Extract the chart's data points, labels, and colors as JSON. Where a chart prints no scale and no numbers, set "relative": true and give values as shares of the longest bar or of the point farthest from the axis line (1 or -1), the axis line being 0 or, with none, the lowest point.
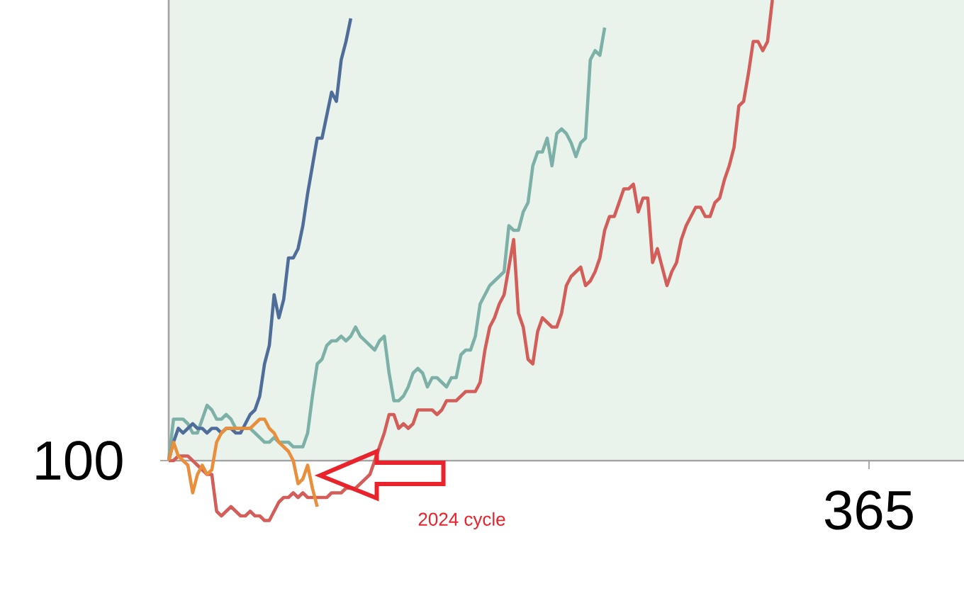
{
  "chart_data": {
    "type": "line",
    "relative": true,
    "marker": "none",
    "line_style": "solid",
    "categories": [
      null,
      null,
      null,
      null,
      null,
      null,
      null,
      null,
      null,
      null,
      null,
      null,
      null,
      null,
      null,
      null,
      null,
      null,
      null,
      null,
      null,
      null,
      null,
      null,
      null,
      null,
      null,
      null,
      null,
      null,
      null,
      null,
      null,
      null,
      null,
      null,
      null,
      null,
      null,
      null,
      null,
      null,
      null,
      null,
      null,
      null,
      null,
      null,
      null,
      null,
      null,
      null,
      null,
      null,
      null,
      null,
      null,
      null,
      null,
      null,
      null,
      null,
      null,
      null,
      null,
      null,
      null,
      null,
      null,
      null,
      null,
      null,
      null,
      null,
      null,
      null,
      null,
      null,
      null,
      null,
      null,
      null,
      null,
      null,
      null,
      null,
      null,
      null,
      null,
      null,
      null,
      null,
      null,
      null,
      null,
      null,
      null,
      null,
      null,
      null,
      null,
      null,
      null,
      null,
      null,
      null,
      null,
      null,
      null,
      null,
      null,
      null,
      null,
      null,
      null,
      null,
      null,
      null,
      null,
      null,
      null,
      null,
      null,
      null,
      null,
      null,
      null,
      null,
      null,
      null,
      null,
      null,
      null,
      null,
      null,
      null,
      null,
      null,
      null,
      null,
      null,
      null,
      null,
      null,
      null,
      null,
      null,
      null,
      null,
      null,
      null,
      null,
      null,
      null,
      null,
      null,
      null,
      null,
      null,
      null,
      null,
      null,
      null,
      null,
      null,
      null,
      null
    ],
    "annotations": [
      "100",
      "365"
    ],
    "series": [
      {
        "color": "#7db1a7",
        "values": [
          0,
          0.09,
          0.09,
          0.09,
          0.08,
          0.06,
          0.06,
          0.09,
          0.12,
          0.11,
          0.09,
          0.09,
          0.1,
          0.09,
          0.07,
          0.07,
          0.07,
          0.07,
          0.06,
          0.05,
          0.04,
          0.04,
          0.05,
          0.04,
          0.04,
          0.04,
          0.03,
          0.03,
          0.03,
          0.06,
          0.14,
          0.21,
          0.22,
          0.25,
          0.26,
          0.26,
          0.27,
          0.26,
          0.27,
          0.29,
          0.27,
          0.26,
          0.25,
          0.24,
          0.26,
          0.27,
          0.19,
          0.13,
          0.13,
          0.14,
          0.16,
          0.19,
          0.2,
          0.19,
          0.16,
          0.18,
          0.18,
          0.17,
          0.16,
          0.18,
          0.18,
          0.23,
          0.24,
          0.24,
          0.27,
          0.34,
          0.36,
          0.38,
          0.39,
          0.4,
          0.41,
          0.51,
          0.5,
          0.5,
          0.54,
          0.56,
          0.64,
          0.67,
          0.67,
          0.7,
          0.64,
          0.71,
          0.72,
          0.71,
          0.69,
          0.66,
          0.69,
          0.7,
          0.87,
          0.89,
          0.88,
          0.94,
          null,
          null,
          null,
          null,
          null,
          null,
          null,
          null,
          null,
          null,
          null,
          null,
          null,
          null,
          null,
          null,
          null,
          null,
          null,
          null,
          null,
          null,
          null,
          null,
          null,
          null,
          null,
          null,
          null,
          null,
          null,
          null,
          null,
          null,
          null,
          null,
          null,
          null,
          null,
          null,
          null,
          null,
          null,
          null,
          null,
          null,
          null,
          null,
          null,
          null,
          null,
          null,
          null,
          null,
          null,
          null,
          null,
          null,
          null,
          null,
          null,
          null,
          null,
          null,
          null,
          null,
          null,
          null,
          null,
          null,
          null,
          null,
          null,
          null,
          null
        ]
      },
      {
        "color": "#d35d58",
        "values": [
          0,
          0,
          0.01,
          0.01,
          0.01,
          0,
          -0.01,
          -0.02,
          -0.03,
          -0.03,
          -0.11,
          -0.12,
          -0.11,
          -0.1,
          -0.11,
          -0.12,
          -0.12,
          -0.11,
          -0.12,
          -0.12,
          -0.13,
          -0.13,
          -0.11,
          -0.09,
          -0.08,
          -0.08,
          -0.07,
          -0.08,
          -0.07,
          -0.08,
          -0.08,
          -0.08,
          -0.08,
          -0.08,
          -0.07,
          -0.07,
          -0.07,
          -0.06,
          -0.06,
          -0.06,
          -0.05,
          -0.04,
          -0.03,
          0,
          0.03,
          0.06,
          0.1,
          0.1,
          0.07,
          0.08,
          0.07,
          0.08,
          0.11,
          0.11,
          0.11,
          0.11,
          0.1,
          0.11,
          0.13,
          0.13,
          0.13,
          0.14,
          0.15,
          0.15,
          0.15,
          0.17,
          0.24,
          0.29,
          0.31,
          0.34,
          0.36,
          0.42,
          0.48,
          0.32,
          0.29,
          0.22,
          0.21,
          0.28,
          0.31,
          0.3,
          0.29,
          0.29,
          0.32,
          0.38,
          0.4,
          0.41,
          0.42,
          0.38,
          0.39,
          0.41,
          0.44,
          0.5,
          0.53,
          0.53,
          0.56,
          0.59,
          0.59,
          0.6,
          0.54,
          0.57,
          0.57,
          0.43,
          0.46,
          0.42,
          0.38,
          0.41,
          0.43,
          0.48,
          0.51,
          0.53,
          0.55,
          0.55,
          0.53,
          0.53,
          0.56,
          0.57,
          0.61,
          0.64,
          0.68,
          0.77,
          0.78,
          0.84,
          0.91,
          0.91,
          0.89,
          0.91,
          1.0,
          null,
          null,
          null,
          null,
          null,
          null,
          null,
          null,
          null,
          null,
          null,
          null,
          null,
          null,
          null,
          null,
          null,
          null,
          null,
          null,
          null,
          null,
          null,
          null,
          null,
          null,
          null,
          null,
          null,
          null,
          null,
          null,
          null,
          null,
          null,
          null,
          null,
          null,
          null,
          null
        ]
      },
      {
        "color": "#4f6d9a",
        "values": [
          0,
          0.04,
          0.07,
          0.06,
          0.07,
          0.08,
          0.07,
          0.07,
          0.06,
          0.07,
          0.07,
          0.06,
          0.07,
          0.07,
          0.06,
          0.06,
          0.08,
          0.1,
          0.11,
          0.14,
          0.21,
          0.25,
          0.36,
          0.31,
          0.35,
          0.44,
          0.44,
          0.46,
          0.51,
          0.58,
          0.64,
          0.7,
          0.7,
          0.75,
          0.8,
          0.78,
          0.87,
          0.91,
          0.96,
          null,
          null,
          null,
          null,
          null,
          null,
          null,
          null,
          null,
          null,
          null,
          null,
          null,
          null,
          null,
          null,
          null,
          null,
          null,
          null,
          null,
          null,
          null,
          null,
          null,
          null,
          null,
          null,
          null,
          null,
          null,
          null,
          null,
          null,
          null,
          null,
          null,
          null,
          null,
          null,
          null,
          null,
          null,
          null,
          null,
          null,
          null,
          null,
          null,
          null,
          null,
          null,
          null,
          null,
          null,
          null,
          null,
          null,
          null,
          null,
          null,
          null,
          null,
          null,
          null,
          null,
          null,
          null,
          null,
          null,
          null,
          null,
          null,
          null,
          null,
          null,
          null,
          null,
          null,
          null,
          null,
          null,
          null,
          null,
          null,
          null,
          null,
          null,
          null,
          null,
          null,
          null,
          null,
          null,
          null,
          null,
          null,
          null,
          null,
          null,
          null,
          null,
          null,
          null,
          null,
          null,
          null,
          null,
          null,
          null,
          null,
          null,
          null,
          null,
          null,
          null,
          null,
          null,
          null,
          null,
          null,
          null,
          null,
          null,
          null,
          null,
          null,
          null
        ]
      },
      {
        "name": "2024 cycle",
        "color": "#e98f3b",
        "values": [
          0,
          0.04,
          0.01,
          0,
          -0.01,
          -0.07,
          -0.03,
          -0.01,
          -0.03,
          -0.02,
          0.04,
          0.06,
          0.07,
          0.07,
          0.07,
          0.07,
          0.07,
          0.07,
          0.08,
          0.09,
          0.09,
          0.07,
          0.06,
          0.04,
          0.03,
          0.02,
          0,
          -0.05,
          -0.04,
          -0.01,
          -0.06,
          -0.1,
          null,
          null,
          null,
          null,
          null,
          null,
          null,
          null,
          null,
          null,
          null,
          null,
          null,
          null,
          null,
          null,
          null,
          null,
          null,
          null,
          null,
          null,
          null,
          null,
          null,
          null,
          null,
          null,
          null,
          null,
          null,
          null,
          null,
          null,
          null,
          null,
          null,
          null,
          null,
          null,
          null,
          null,
          null,
          null,
          null,
          null,
          null,
          null,
          null,
          null,
          null,
          null,
          null,
          null,
          null,
          null,
          null,
          null,
          null,
          null,
          null,
          null,
          null,
          null,
          null,
          null,
          null,
          null,
          null,
          null,
          null,
          null,
          null,
          null,
          null,
          null,
          null,
          null,
          null,
          null,
          null,
          null,
          null,
          null,
          null,
          null,
          null,
          null,
          null,
          null,
          null,
          null,
          null,
          null,
          null,
          null,
          null,
          null,
          null,
          null,
          null,
          null,
          null,
          null,
          null,
          null,
          null,
          null,
          null,
          null,
          null,
          null,
          null,
          null,
          null,
          null,
          null,
          null,
          null,
          null,
          null,
          null,
          null,
          null,
          null,
          null,
          null,
          null,
          null,
          null,
          null,
          null,
          null,
          null,
          null
        ]
      }
    ]
  }
}
